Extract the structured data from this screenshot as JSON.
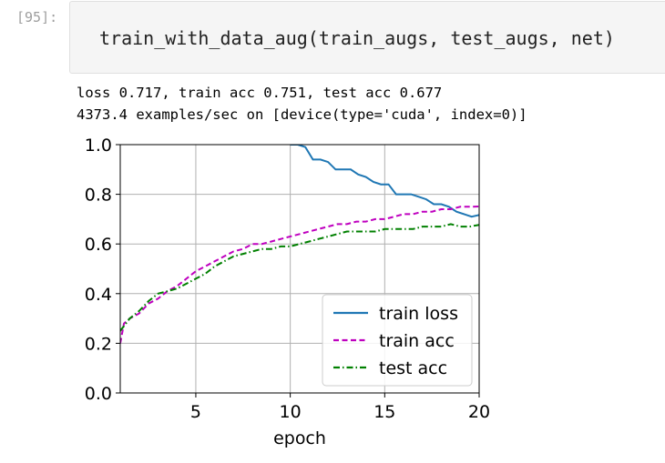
{
  "cell": {
    "prompt": "[95]:",
    "code": "train_with_data_aug(train_augs, test_augs, net)"
  },
  "output": {
    "line1": "loss 0.717, train acc 0.751, test acc 0.677",
    "line2": "4373.4 examples/sec on [device(type='cuda', index=0)]"
  },
  "chart_data": {
    "type": "line",
    "xlabel": "epoch",
    "ylabel": "",
    "xlim": [
      1,
      20
    ],
    "ylim": [
      0,
      1
    ],
    "xticks": [
      5,
      10,
      15,
      20
    ],
    "yticks": [
      0.0,
      0.2,
      0.4,
      0.6,
      0.8,
      1.0
    ],
    "xtick_labels": [
      "5",
      "10",
      "15",
      "20"
    ],
    "ytick_labels": [
      "0.0",
      "0.2",
      "0.4",
      "0.6",
      "0.8",
      "1.0"
    ],
    "grid": true,
    "legend_position": "lower-right",
    "series": [
      {
        "name": "train loss",
        "color": "#1f77b4",
        "dash": "solid",
        "x": [
          10.0,
          10.4,
          10.8,
          11.2,
          11.6,
          12.0,
          12.4,
          12.8,
          13.2,
          13.6,
          14.0,
          14.4,
          14.8,
          15.2,
          15.6,
          16.0,
          16.4,
          16.8,
          17.2,
          17.6,
          18.0,
          18.4,
          18.8,
          19.2,
          19.6,
          20.0
        ],
        "y": [
          1.0,
          1.0,
          0.99,
          0.94,
          0.94,
          0.93,
          0.9,
          0.9,
          0.9,
          0.88,
          0.87,
          0.85,
          0.84,
          0.84,
          0.8,
          0.8,
          0.8,
          0.79,
          0.78,
          0.76,
          0.76,
          0.75,
          0.73,
          0.72,
          0.71,
          0.717
        ]
      },
      {
        "name": "train acc",
        "color": "#bf00bf",
        "dash": "dashed",
        "x": [
          1.0,
          1.2,
          1.5,
          2.0,
          2.5,
          3.0,
          3.5,
          4.0,
          4.5,
          5.0,
          5.5,
          6.0,
          6.5,
          7.0,
          7.5,
          8.0,
          8.5,
          9.0,
          9.5,
          10.0,
          10.5,
          11.0,
          11.5,
          12.0,
          12.5,
          13.0,
          13.5,
          14.0,
          14.5,
          15.0,
          15.5,
          16.0,
          16.5,
          17.0,
          17.5,
          18.0,
          18.5,
          19.0,
          19.5,
          20.0
        ],
        "y": [
          0.2,
          0.28,
          0.3,
          0.32,
          0.36,
          0.38,
          0.41,
          0.43,
          0.46,
          0.49,
          0.51,
          0.53,
          0.55,
          0.57,
          0.58,
          0.6,
          0.6,
          0.61,
          0.62,
          0.63,
          0.64,
          0.65,
          0.66,
          0.67,
          0.68,
          0.68,
          0.69,
          0.69,
          0.7,
          0.7,
          0.71,
          0.72,
          0.72,
          0.73,
          0.73,
          0.74,
          0.74,
          0.75,
          0.75,
          0.751
        ]
      },
      {
        "name": "test acc",
        "color": "#008000",
        "dash": "dashdot",
        "x": [
          1.0,
          1.5,
          2.0,
          2.5,
          3.0,
          3.5,
          4.0,
          4.5,
          5.0,
          5.5,
          6.0,
          6.5,
          7.0,
          7.5,
          8.0,
          8.5,
          9.0,
          9.5,
          10.0,
          10.5,
          11.0,
          11.5,
          12.0,
          12.5,
          13.0,
          13.5,
          14.0,
          14.5,
          15.0,
          15.5,
          16.0,
          16.5,
          17.0,
          17.5,
          18.0,
          18.5,
          19.0,
          19.5,
          20.0
        ],
        "y": [
          0.25,
          0.3,
          0.33,
          0.37,
          0.4,
          0.41,
          0.42,
          0.44,
          0.46,
          0.48,
          0.51,
          0.53,
          0.55,
          0.56,
          0.57,
          0.58,
          0.58,
          0.59,
          0.59,
          0.6,
          0.61,
          0.62,
          0.63,
          0.64,
          0.65,
          0.65,
          0.65,
          0.65,
          0.66,
          0.66,
          0.66,
          0.66,
          0.67,
          0.67,
          0.67,
          0.68,
          0.67,
          0.67,
          0.677
        ]
      }
    ]
  }
}
